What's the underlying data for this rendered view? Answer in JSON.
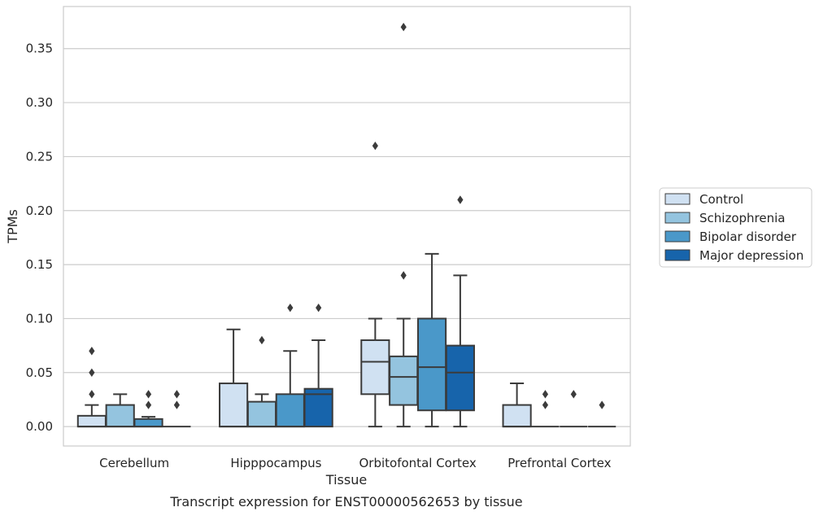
{
  "chart_data": {
    "type": "box",
    "xlabel": "Tissue",
    "ylabel": "TPMs",
    "caption": "Transcript expression for ENST00000562653 by tissue",
    "ylim": [
      -0.018,
      0.389
    ],
    "yticks": [
      "0.00",
      "0.05",
      "0.10",
      "0.15",
      "0.20",
      "0.25",
      "0.30",
      "0.35"
    ],
    "ytick_values": [
      0,
      0.05,
      0.1,
      0.15,
      0.2,
      0.25,
      0.3,
      0.35
    ],
    "grid": true,
    "legend_position": "right",
    "categories": [
      "Cerebellum",
      "Hipppocampus",
      "Orbitofontal Cortex",
      "Prefrontal Cortex"
    ],
    "series": [
      {
        "name": "Control",
        "color": "#d0e1f2",
        "boxes": [
          {
            "q1": 0,
            "median": 0,
            "q3": 0.01,
            "whislo": 0,
            "whishi": 0.02,
            "fliers": [
              0.03,
              0.05,
              0.07
            ]
          },
          {
            "q1": 0,
            "median": 0,
            "q3": 0.04,
            "whislo": 0,
            "whishi": 0.09,
            "fliers": []
          },
          {
            "q1": 0.03,
            "median": 0.06,
            "q3": 0.08,
            "whislo": 0,
            "whishi": 0.1,
            "fliers": [
              0.26
            ]
          },
          {
            "q1": 0,
            "median": 0,
            "q3": 0.02,
            "whislo": 0,
            "whishi": 0.04,
            "fliers": []
          }
        ]
      },
      {
        "name": "Schizophrenia",
        "color": "#94c4df",
        "boxes": [
          {
            "q1": 0,
            "median": 0,
            "q3": 0.02,
            "whislo": 0,
            "whishi": 0.03,
            "fliers": []
          },
          {
            "q1": 0,
            "median": 0,
            "q3": 0.023,
            "whislo": 0,
            "whishi": 0.03,
            "fliers": [
              0.08
            ]
          },
          {
            "q1": 0.02,
            "median": 0.046,
            "q3": 0.065,
            "whislo": 0,
            "whishi": 0.1,
            "fliers": [
              0.14,
              0.37
            ]
          },
          {
            "q1": 0,
            "median": 0,
            "q3": 0,
            "whislo": 0,
            "whishi": 0,
            "fliers": [
              0.02,
              0.03
            ]
          }
        ]
      },
      {
        "name": "Bipolar disorder",
        "color": "#4a98c9",
        "boxes": [
          {
            "q1": 0,
            "median": 0,
            "q3": 0.007,
            "whislo": 0,
            "whishi": 0.009,
            "fliers": [
              0.02,
              0.03
            ]
          },
          {
            "q1": 0,
            "median": 0,
            "q3": 0.03,
            "whislo": 0,
            "whishi": 0.07,
            "fliers": [
              0.11
            ]
          },
          {
            "q1": 0.015,
            "median": 0.055,
            "q3": 0.1,
            "whislo": 0,
            "whishi": 0.16,
            "fliers": []
          },
          {
            "q1": 0,
            "median": 0,
            "q3": 0,
            "whislo": 0,
            "whishi": 0,
            "fliers": [
              0.03
            ]
          }
        ]
      },
      {
        "name": "Major depression",
        "color": "#1764ab",
        "boxes": [
          {
            "q1": 0,
            "median": 0,
            "q3": 0,
            "whislo": 0,
            "whishi": 0,
            "fliers": [
              0.02,
              0.03
            ]
          },
          {
            "q1": 0,
            "median": 0.03,
            "q3": 0.035,
            "whislo": 0,
            "whishi": 0.08,
            "fliers": [
              0.11
            ]
          },
          {
            "q1": 0.015,
            "median": 0.05,
            "q3": 0.075,
            "whislo": 0,
            "whishi": 0.14,
            "fliers": [
              0.21
            ]
          },
          {
            "q1": 0,
            "median": 0,
            "q3": 0,
            "whislo": 0,
            "whishi": 0,
            "fliers": [
              0.02
            ]
          }
        ]
      }
    ]
  }
}
